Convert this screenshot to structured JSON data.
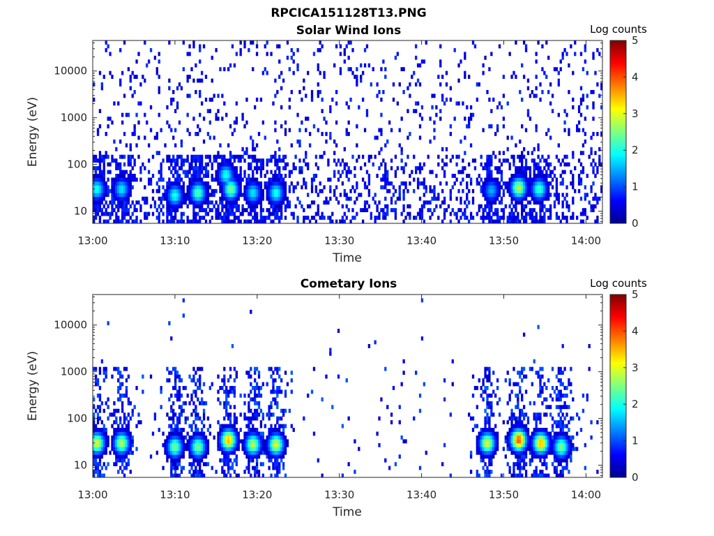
{
  "figure_title": "RPCICA151128T13.PNG",
  "chart_data": [
    {
      "type": "heatmap",
      "title": "Solar Wind Ions",
      "xlabel": "Time",
      "ylabel": "Energy (eV)",
      "x_ticks": [
        "13:00",
        "13:10",
        "13:20",
        "13:30",
        "13:40",
        "13:50",
        "14:00"
      ],
      "xlim_minutes": [
        0,
        62
      ],
      "y_ticks": [
        "10",
        "100",
        "1000",
        "10000"
      ],
      "y_scale": "log",
      "ylim_eV": [
        5.5,
        45000
      ],
      "colorbar_label": "Log counts",
      "colorbar_ticks": [
        "0",
        "1",
        "2",
        "3",
        "4",
        "5"
      ],
      "clim": [
        0,
        5
      ],
      "colormap": "jet",
      "grid": false,
      "hotspots": [
        {
          "t_minutes": 0.5,
          "energy_eV": 30,
          "log_counts": 2.0
        },
        {
          "t_minutes": 3.5,
          "energy_eV": 30,
          "log_counts": 1.8
        },
        {
          "t_minutes": 10.0,
          "energy_eV": 22,
          "log_counts": 2.0
        },
        {
          "t_minutes": 12.8,
          "energy_eV": 25,
          "log_counts": 2.3
        },
        {
          "t_minutes": 16.2,
          "energy_eV": 60,
          "log_counts": 2.0
        },
        {
          "t_minutes": 16.8,
          "energy_eV": 30,
          "log_counts": 2.5
        },
        {
          "t_minutes": 19.5,
          "energy_eV": 25,
          "log_counts": 1.8
        },
        {
          "t_minutes": 22.3,
          "energy_eV": 25,
          "log_counts": 2.0
        },
        {
          "t_minutes": 48.5,
          "energy_eV": 28,
          "log_counts": 1.5
        },
        {
          "t_minutes": 51.8,
          "energy_eV": 32,
          "log_counts": 2.8
        },
        {
          "t_minutes": 54.3,
          "energy_eV": 30,
          "log_counts": 2.2
        }
      ]
    },
    {
      "type": "heatmap",
      "title": "Cometary Ions",
      "xlabel": "Time",
      "ylabel": "Energy (eV)",
      "x_ticks": [
        "13:00",
        "13:10",
        "13:20",
        "13:30",
        "13:40",
        "13:50",
        "14:00"
      ],
      "xlim_minutes": [
        0,
        62
      ],
      "y_ticks": [
        "10",
        "100",
        "1000",
        "10000"
      ],
      "y_scale": "log",
      "ylim_eV": [
        5.5,
        45000
      ],
      "colorbar_label": "Log counts",
      "colorbar_ticks": [
        "0",
        "1",
        "2",
        "3",
        "4",
        "5"
      ],
      "clim": [
        0,
        5
      ],
      "colormap": "jet",
      "grid": false,
      "hotspots": [
        {
          "t_minutes": 0.5,
          "energy_eV": 30,
          "log_counts": 3.0
        },
        {
          "t_minutes": 3.5,
          "energy_eV": 30,
          "log_counts": 2.8
        },
        {
          "t_minutes": 10.0,
          "energy_eV": 25,
          "log_counts": 2.5
        },
        {
          "t_minutes": 12.8,
          "energy_eV": 25,
          "log_counts": 2.5
        },
        {
          "t_minutes": 16.5,
          "energy_eV": 35,
          "log_counts": 3.5
        },
        {
          "t_minutes": 19.5,
          "energy_eV": 28,
          "log_counts": 2.8
        },
        {
          "t_minutes": 22.3,
          "energy_eV": 28,
          "log_counts": 3.0
        },
        {
          "t_minutes": 48.0,
          "energy_eV": 30,
          "log_counts": 3.0
        },
        {
          "t_minutes": 51.8,
          "energy_eV": 35,
          "log_counts": 4.0
        },
        {
          "t_minutes": 54.5,
          "energy_eV": 30,
          "log_counts": 3.5
        },
        {
          "t_minutes": 57.0,
          "energy_eV": 25,
          "log_counts": 2.5
        }
      ]
    }
  ]
}
